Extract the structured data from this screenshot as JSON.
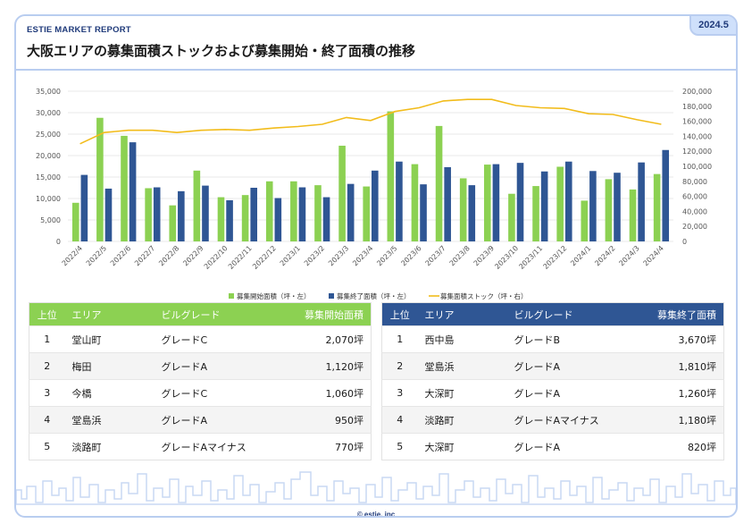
{
  "header": {
    "report_label": "ESTIE MARKET REPORT",
    "date": "2024.5",
    "title": "大阪エリアの募集面積ストックおよび募集開始・終了面積の推移"
  },
  "colors": {
    "accent_navy": "#1f3a7a",
    "green": "#8cd152",
    "navy": "#2f5694",
    "line": "#f2bc1b",
    "frame": "#b9cdf0"
  },
  "chart_data": {
    "type": "bar",
    "categories": [
      "2022/4",
      "2022/5",
      "2022/6",
      "2022/7",
      "2022/8",
      "2022/9",
      "2022/10",
      "2022/11",
      "2022/12",
      "2023/1",
      "2023/2",
      "2023/3",
      "2023/4",
      "2023/5",
      "2023/6",
      "2023/7",
      "2023/8",
      "2023/9",
      "2023/10",
      "2023/11",
      "2023/12",
      "2024/1",
      "2024/2",
      "2024/3",
      "2024/4"
    ],
    "series": [
      {
        "name": "募集開始面積（坪・左）",
        "type": "bar",
        "axis": "left",
        "color": "#8cd152",
        "values": [
          9000,
          28800,
          24600,
          12400,
          8400,
          16500,
          10300,
          10800,
          14000,
          14000,
          13100,
          22300,
          12800,
          30300,
          18000,
          26900,
          14700,
          17900,
          11100,
          12900,
          17400,
          9500,
          14500,
          12100,
          15700
        ]
      },
      {
        "name": "募集終了面積（坪・左）",
        "type": "bar",
        "axis": "left",
        "color": "#2f5694",
        "values": [
          15500,
          12300,
          23100,
          12600,
          11700,
          13000,
          9600,
          12500,
          10100,
          12600,
          10300,
          13400,
          16500,
          18600,
          13300,
          17300,
          13100,
          18000,
          18300,
          16300,
          18600,
          16400,
          16000,
          18400,
          21300
        ]
      },
      {
        "name": "募集面積ストック（坪・右）",
        "type": "line",
        "axis": "right",
        "color": "#f2bc1b",
        "values": [
          130000,
          145000,
          148000,
          148000,
          145000,
          148000,
          149000,
          148000,
          151000,
          153000,
          156000,
          165000,
          161000,
          173000,
          178000,
          187000,
          189000,
          189000,
          181000,
          178000,
          177000,
          170000,
          169000,
          162000,
          156000
        ]
      }
    ],
    "y_left": {
      "min": 0,
      "max": 35000,
      "ticks": [
        "0",
        "5,000",
        "10,000",
        "15,000",
        "20,000",
        "25,000",
        "30,000",
        "35,000"
      ]
    },
    "y_right": {
      "min": 0,
      "max": 200000,
      "ticks": [
        "0",
        "20,000",
        "40,000",
        "60,000",
        "80,000",
        "100,000",
        "120,000",
        "140,000",
        "160,000",
        "180,000",
        "200,000"
      ]
    },
    "grid": true,
    "legend_position": "bottom"
  },
  "tables": {
    "start": {
      "headers": [
        "上位",
        "エリア",
        "ビルグレード",
        "募集開始面積"
      ],
      "rows": [
        [
          "1",
          "堂山町",
          "グレードC",
          "2,070坪"
        ],
        [
          "2",
          "梅田",
          "グレードA",
          "1,120坪"
        ],
        [
          "3",
          "今橋",
          "グレードC",
          "1,060坪"
        ],
        [
          "4",
          "堂島浜",
          "グレードA",
          "950坪"
        ],
        [
          "5",
          "淡路町",
          "グレードAマイナス",
          "770坪"
        ]
      ]
    },
    "end": {
      "headers": [
        "上位",
        "エリア",
        "ビルグレード",
        "募集終了面積"
      ],
      "rows": [
        [
          "1",
          "西中島",
          "グレードB",
          "3,670坪"
        ],
        [
          "2",
          "堂島浜",
          "グレードA",
          "1,810坪"
        ],
        [
          "3",
          "大深町",
          "グレードA",
          "1,260坪"
        ],
        [
          "4",
          "淡路町",
          "グレードAマイナス",
          "1,180坪"
        ],
        [
          "5",
          "大深町",
          "グレードA",
          "820坪"
        ]
      ]
    }
  },
  "footer": {
    "copyright": "© estie, inc"
  }
}
